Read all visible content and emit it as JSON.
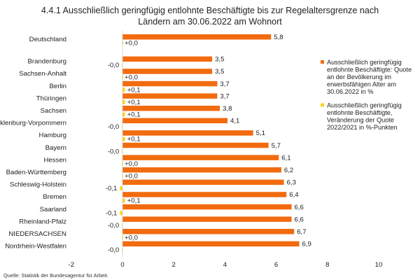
{
  "chart_data": {
    "type": "bar",
    "orientation": "horizontal",
    "title_lines": [
      "4.4.1 Ausschließlich geringfügig entlohnte Beschäftigte bis zur Regelaltersgrenze nach",
      "Ländern am 30.06.2022 am Wohnort"
    ],
    "categories": [
      "Deutschland",
      "Brandenburg",
      "Sachsen-Anhalt",
      "Berlin",
      "Thüringen",
      "Sachsen",
      "Mecklenburg-Vorpommern",
      "Hamburg",
      "Bayern",
      "Hessen",
      "Baden-Württemberg",
      "Schleswig-Holstein",
      "Bremen",
      "Saarland",
      "Rheinland-Pfalz",
      "NIEDERSACHSEN",
      "Nordrhein-Westfalen"
    ],
    "series": [
      {
        "name_lines": [
          "Ausschließlich geringfügig",
          "entlohnte Beschäftigte: Quote",
          "an der Bevölkerung im",
          "erwerbsfähigen Alter am",
          "30.06.2022 in %"
        ],
        "color": "#f26b0f",
        "values": [
          5.8,
          3.5,
          3.5,
          3.7,
          3.7,
          3.8,
          4.1,
          5.1,
          5.7,
          6.1,
          6.2,
          6.3,
          6.4,
          6.6,
          6.6,
          6.7,
          6.9
        ],
        "labels": [
          "5,8",
          "3,5",
          "3,5",
          "3,7",
          "3,7",
          "3,8",
          "4,1",
          "5,1",
          "5,7",
          "6,1",
          "6,2",
          "6,3",
          "6,4",
          "6,6",
          "6,6",
          "6,7",
          "6,9"
        ]
      },
      {
        "name_lines": [
          "Ausschließlich geringfügig",
          "entlohnte Beschäftigte,",
          "Veränderung der Quote",
          "2022/2021 in %-Punkten"
        ],
        "color": "#ffd21f",
        "values": [
          0.0,
          -0.02,
          0.0,
          0.1,
          0.1,
          0.1,
          -0.02,
          0.1,
          -0.02,
          0.0,
          0.0,
          -0.1,
          0.1,
          -0.1,
          -0.02,
          0.0,
          -0.02
        ],
        "labels": [
          "+0,0",
          "-0,0",
          "+0,0",
          "+0,1",
          "+0,1",
          "+0,1",
          "-0,0",
          "+0,1",
          "-0,0",
          "+0,0",
          "+0,0",
          "-0,1",
          "+0,1",
          "-0,1",
          "-0,0",
          "+0,0",
          "-0,0"
        ]
      }
    ],
    "xlim": [
      -2,
      10
    ],
    "x_ticks": [
      "-2",
      "0",
      "2",
      "4",
      "6",
      "8",
      "10"
    ],
    "grid": false,
    "legend_position": "right",
    "source": "Quelle: Statistik der Bundesagentur für Arbeit."
  }
}
